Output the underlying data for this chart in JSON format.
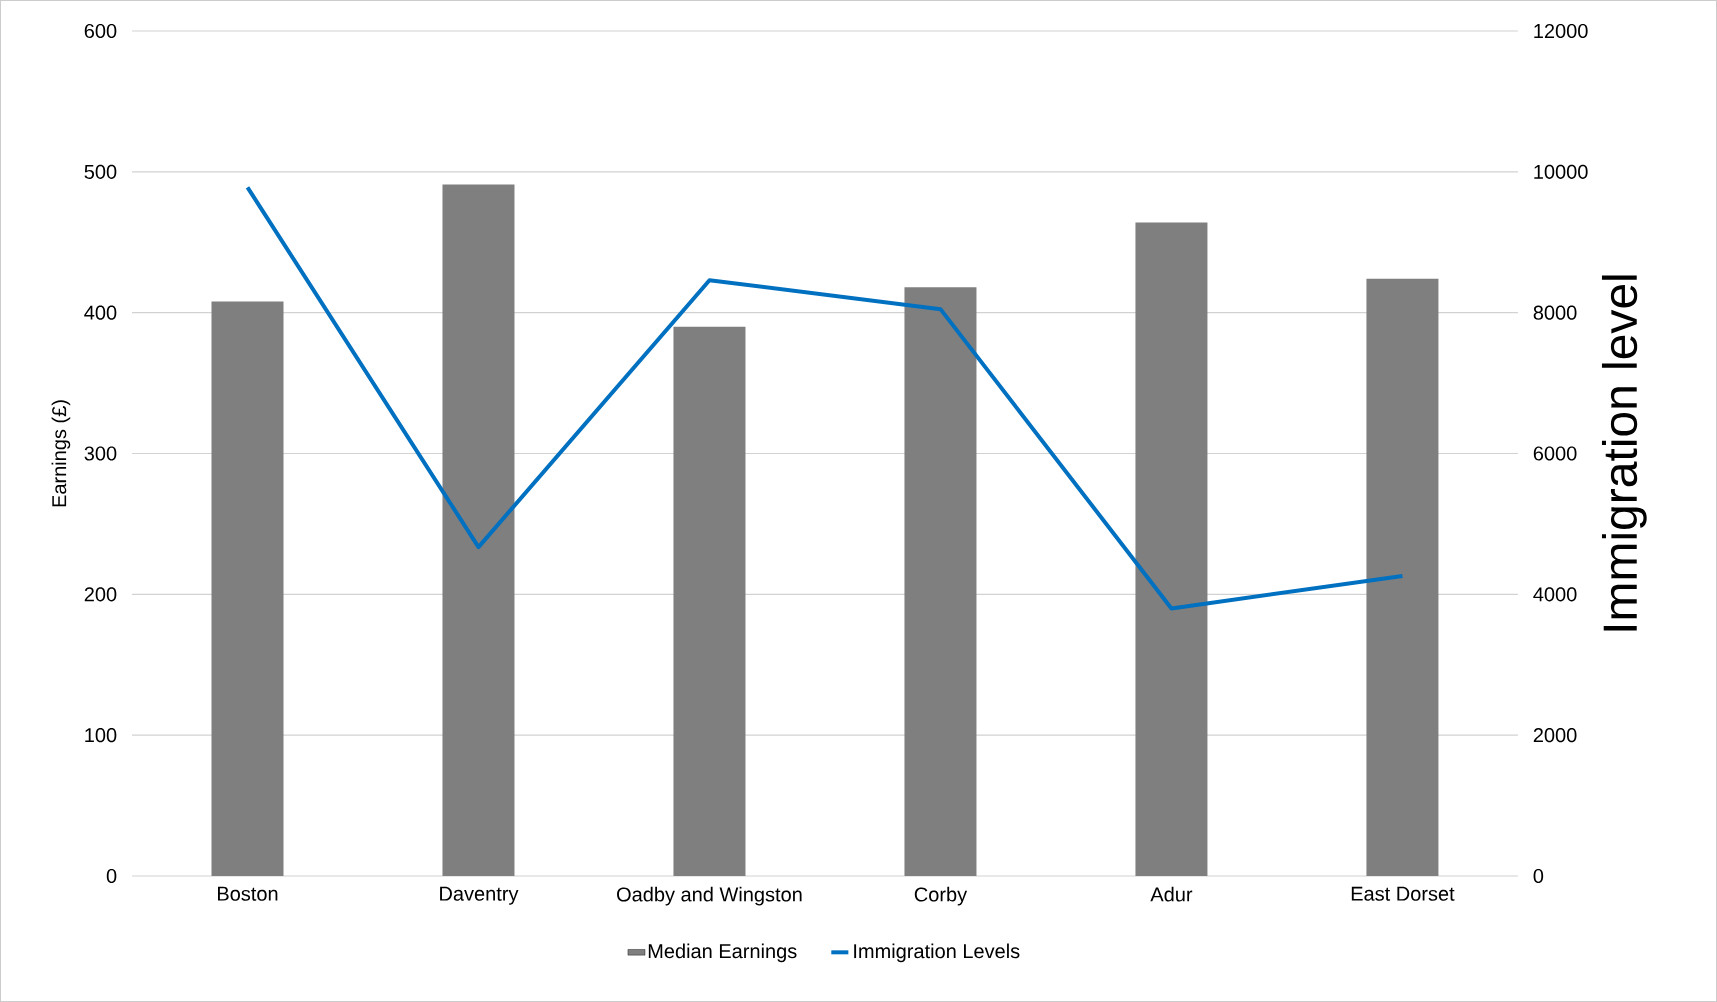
{
  "chart_data": {
    "type": "bar",
    "categories": [
      "Boston",
      "Daventry",
      "Oadby and Wingston",
      "Corby",
      "Adur",
      "East Dorset"
    ],
    "ylabel": "Earnings (£)",
    "y2label": "Immigration level",
    "ylim": [
      0,
      600
    ],
    "yticks": [
      0,
      100,
      200,
      300,
      400,
      500,
      600
    ],
    "y2lim": [
      0,
      12000
    ],
    "y2ticks": [
      0,
      2000,
      4000,
      6000,
      8000,
      10000,
      12000
    ],
    "grid": "y",
    "legend": "bottom",
    "series": [
      {
        "name": "Median Earnings",
        "color": "#7f7f7f",
        "values": [
          408,
          491,
          390,
          418,
          464,
          424
        ]
      },
      {
        "name": "Immigration Levels",
        "type": "line",
        "axis": "y2",
        "color": "#0070c0",
        "values": [
          9780,
          4670,
          8460,
          8050,
          3800,
          4260
        ]
      }
    ]
  }
}
